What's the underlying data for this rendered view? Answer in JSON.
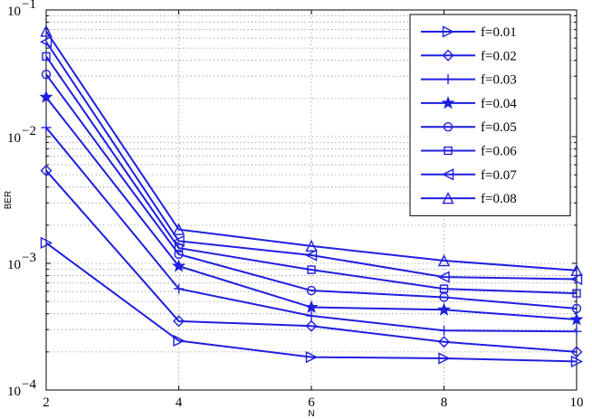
{
  "chart_data": {
    "type": "line",
    "xlabel": "N",
    "ylabel": "BER",
    "xlim": [
      2,
      10
    ],
    "ylim": [
      0.0001,
      0.1
    ],
    "yscale": "log",
    "grid": true,
    "legend_position": "top-right",
    "line_color": "#1f1fe0",
    "x": [
      2,
      4,
      6,
      8,
      10
    ],
    "x_tick_labels": [
      "2",
      "4",
      "6",
      "8",
      "10"
    ],
    "y_ticks": [
      {
        "value": 0.1,
        "base": "10",
        "exp": "−1"
      },
      {
        "value": 0.01,
        "base": "10",
        "exp": "−2"
      },
      {
        "value": 0.001,
        "base": "10",
        "exp": "−3"
      },
      {
        "value": 0.0001,
        "base": "10",
        "exp": "−4"
      }
    ],
    "series": [
      {
        "name": "f=0.01",
        "marker": "triangle-right",
        "values": [
          0.00145,
          0.000245,
          0.000182,
          0.000178,
          0.000168
        ]
      },
      {
        "name": "f=0.02",
        "marker": "diamond",
        "values": [
          0.0054,
          0.00035,
          0.00032,
          0.00024,
          0.0002
        ]
      },
      {
        "name": "f=0.03",
        "marker": "plus",
        "values": [
          0.0118,
          0.00063,
          0.000385,
          0.000295,
          0.00029
        ]
      },
      {
        "name": "f=0.04",
        "marker": "star",
        "values": [
          0.0205,
          0.00095,
          0.00045,
          0.00043,
          0.00036
        ]
      },
      {
        "name": "f=0.05",
        "marker": "circle",
        "values": [
          0.031,
          0.00118,
          0.00061,
          0.00054,
          0.00044
        ]
      },
      {
        "name": "f=0.06",
        "marker": "square",
        "values": [
          0.043,
          0.00132,
          0.00089,
          0.00063,
          0.00058
        ]
      },
      {
        "name": "f=0.07",
        "marker": "triangle-left",
        "values": [
          0.056,
          0.0015,
          0.00116,
          0.00078,
          0.00075
        ]
      },
      {
        "name": "f=0.08",
        "marker": "triangle-up",
        "values": [
          0.068,
          0.00185,
          0.00137,
          0.00105,
          0.00088
        ]
      }
    ]
  }
}
